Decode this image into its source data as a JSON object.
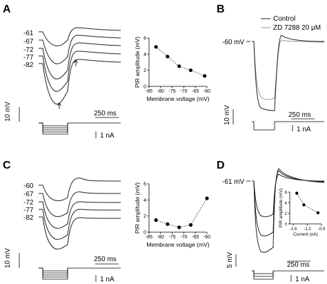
{
  "panels": {
    "A": {
      "letter": "A",
      "voltage_labels": [
        "-61",
        "-67",
        "-72",
        "-77",
        "-82"
      ],
      "scale_v": "10 mV",
      "scale_t": "250 ms",
      "scale_i": "1 nA"
    },
    "B": {
      "letter": "B",
      "voltage_label": "-60 mV",
      "legend": [
        "Control",
        "ZD 7288 20 μM"
      ],
      "scale_v": "10 mV",
      "scale_t": "250 ms",
      "scale_i": "1 nA"
    },
    "C": {
      "letter": "C",
      "voltage_labels": [
        "-60",
        "-67",
        "-72",
        "-77",
        "-82"
      ],
      "scale_v": "10 mV",
      "scale_t": "250 ms",
      "scale_i": "1 nA"
    },
    "D": {
      "letter": "D",
      "voltage_label": "-61 mV",
      "scale_v": "5 mV",
      "scale_t": "250 ms",
      "scale_i": "1 nA"
    }
  },
  "chart_data": [
    {
      "type": "scatter",
      "panel": "A",
      "xlabel": "Membrane voltage (mV)",
      "ylabel": "PIR amplitude (mV)",
      "x_ticks": [
        -85,
        -80,
        -75,
        -70,
        -65,
        -60
      ],
      "y_ticks": [
        0,
        2,
        4,
        6
      ],
      "xlim": [
        -85,
        -60
      ],
      "ylim": [
        0,
        6
      ],
      "x": [
        -82,
        -77,
        -72,
        -67,
        -61
      ],
      "y": [
        4.9,
        3.7,
        2.5,
        2.0,
        1.3
      ]
    },
    {
      "type": "scatter",
      "panel": "C",
      "xlabel": "Membrane voltage (mV)",
      "ylabel": "PIR amplitude (mV)",
      "x_ticks": [
        -85,
        -80,
        -75,
        -70,
        -65,
        -60
      ],
      "y_ticks": [
        0,
        2,
        4,
        6
      ],
      "xlim": [
        -85,
        -60
      ],
      "ylim": [
        0,
        6
      ],
      "x": [
        -82,
        -77,
        -72,
        -67,
        -60
      ],
      "y": [
        1.5,
        1.0,
        0.6,
        0.9,
        4.2
      ]
    },
    {
      "type": "scatter",
      "panel": "D",
      "xlabel": "Current (nA)",
      "ylabel": "PIR amplitude (mV)",
      "x_ticks": [
        -1.6,
        -1.2,
        -0.8
      ],
      "x_tick_labels": [
        "-1.6",
        "-1.2",
        "-0.8"
      ],
      "y_ticks": [
        0,
        2,
        4,
        6
      ],
      "xlim": [
        -1.7,
        -0.8
      ],
      "ylim": [
        0,
        6
      ],
      "x": [
        -1.5,
        -1.3,
        -0.9
      ],
      "y": [
        5.8,
        3.6,
        2.1
      ]
    }
  ]
}
